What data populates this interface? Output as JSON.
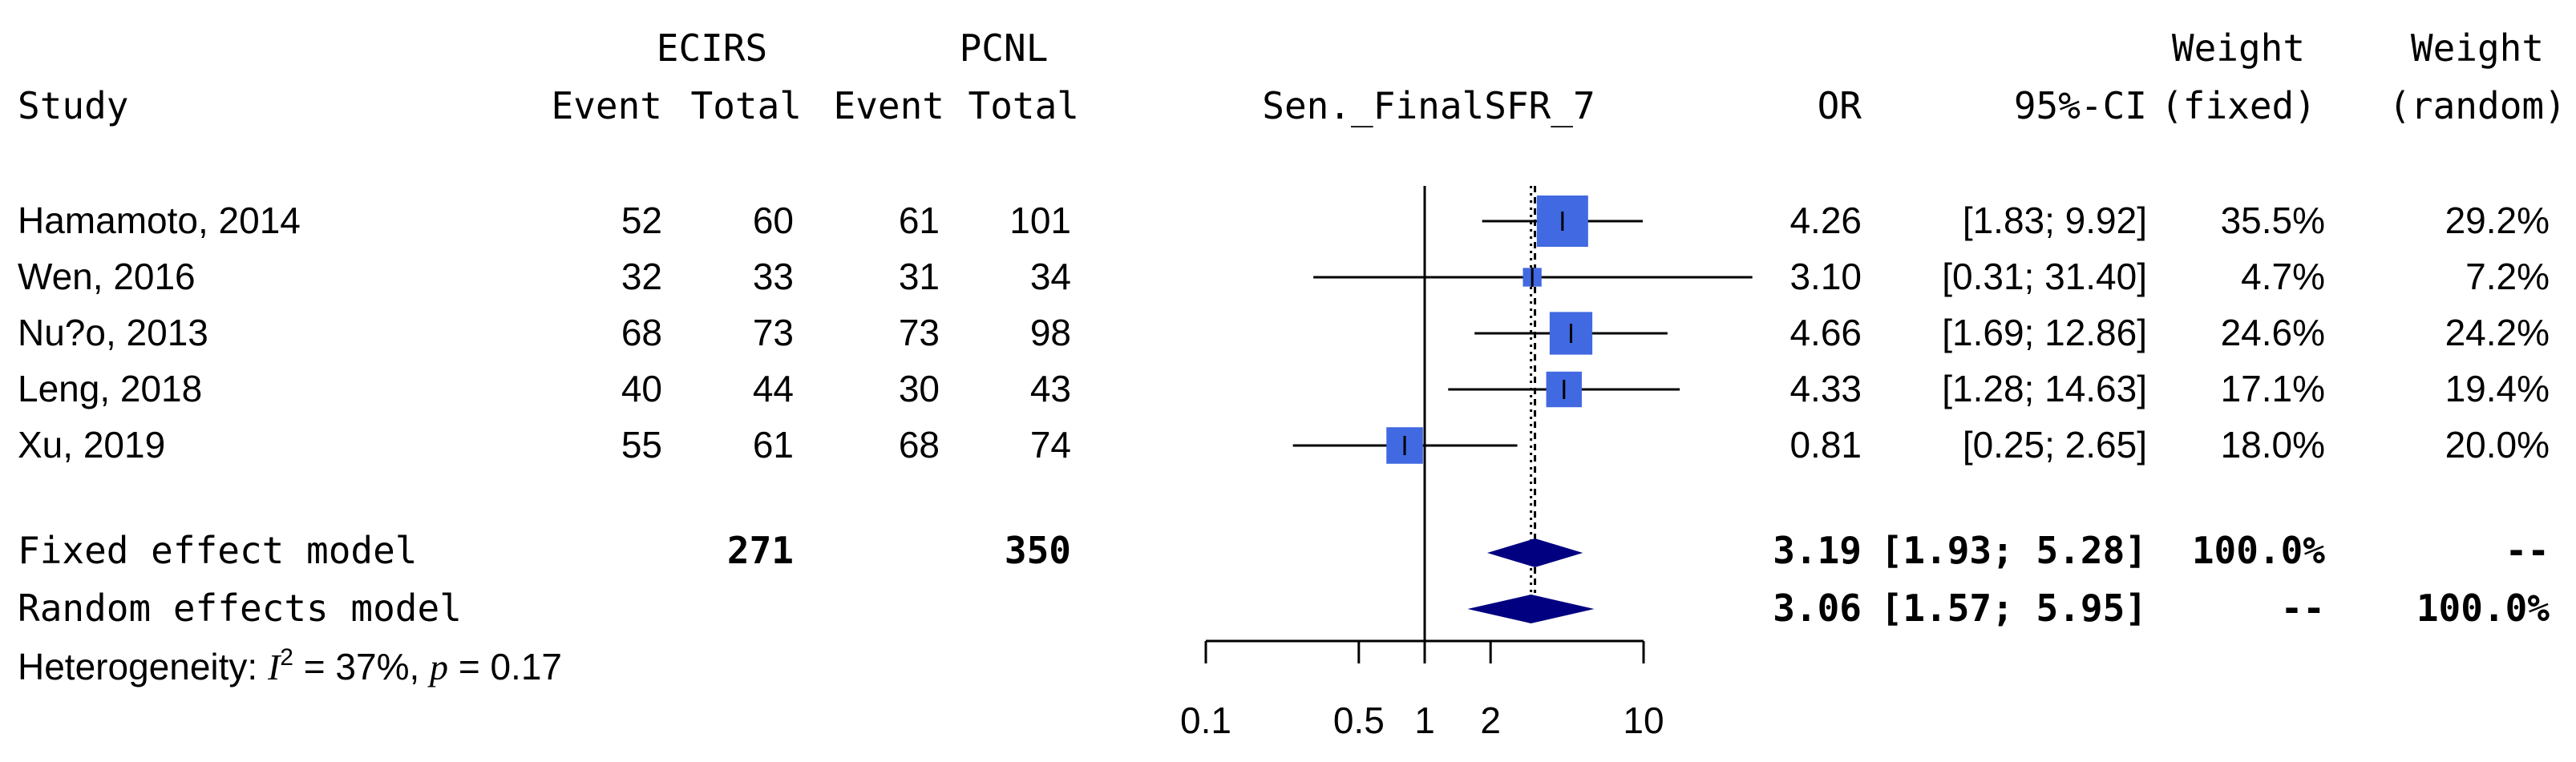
{
  "headers": {
    "group1": "ECIRS",
    "group2": "PCNL",
    "study": "Study",
    "event1": "Event",
    "total1": "Total",
    "event2": "Event",
    "total2": "Total",
    "outcome": "Sen._FinalSFR_7",
    "or": "OR",
    "ci": "95%-CI",
    "weight_fixed_1": "Weight",
    "weight_fixed_2": "(fixed)",
    "weight_random_1": "Weight",
    "weight_random_2": "(random)"
  },
  "studies": [
    {
      "name": "Hamamoto, 2014",
      "event1": "52",
      "total1": "60",
      "event2": "61",
      "total2": "101",
      "or_text": "4.26",
      "ci_text": "[1.83; 9.92]",
      "w_fixed": "35.5%",
      "w_random": "29.2%"
    },
    {
      "name": "Wen, 2016",
      "event1": "32",
      "total1": "33",
      "event2": "31",
      "total2": "34",
      "or_text": "3.10",
      "ci_text": "[0.31; 31.40]",
      "w_fixed": "4.7%",
      "w_random": "7.2%"
    },
    {
      "name": "Nu?o, 2013",
      "event1": "68",
      "total1": "73",
      "event2": "73",
      "total2": "98",
      "or_text": "4.66",
      "ci_text": "[1.69; 12.86]",
      "w_fixed": "24.6%",
      "w_random": "24.2%"
    },
    {
      "name": "Leng, 2018",
      "event1": "40",
      "total1": "44",
      "event2": "30",
      "total2": "43",
      "or_text": "4.33",
      "ci_text": "[1.28; 14.63]",
      "w_fixed": "17.1%",
      "w_random": "19.4%"
    },
    {
      "name": "Xu, 2019",
      "event1": "55",
      "total1": "61",
      "event2": "68",
      "total2": "74",
      "or_text": "0.81",
      "ci_text": "[0.25; 2.65]",
      "w_fixed": "18.0%",
      "w_random": "20.0%"
    }
  ],
  "summaries": [
    {
      "label": "Fixed effect model",
      "total1": "271",
      "total2": "350",
      "or_text": "3.19",
      "ci_text": "[1.93; 5.28]",
      "w_fixed": "100.0%",
      "w_random": "--"
    },
    {
      "label": "Random effects model",
      "total1": "",
      "total2": "",
      "or_text": "3.06",
      "ci_text": "[1.57; 5.95]",
      "w_fixed": "--",
      "w_random": "100.0%"
    }
  ],
  "heterogeneity": {
    "prefix": "Heterogeneity: ",
    "i_label": "I",
    "sup": "2",
    "middle": " = 37%, ",
    "p_label": "p",
    "suffix": " = 0.17"
  },
  "chart_data": {
    "type": "forest",
    "scale": "log",
    "xlim": [
      0.1,
      10
    ],
    "ticks": [
      0.1,
      0.5,
      1,
      2,
      10
    ],
    "tick_labels": [
      "0.1",
      "0.5",
      "1",
      "2",
      "10"
    ],
    "null_value": 1,
    "studies": [
      {
        "or": 4.26,
        "lo": 1.83,
        "hi": 9.92,
        "weight_fixed": 35.5
      },
      {
        "or": 3.1,
        "lo": 0.31,
        "hi": 31.4,
        "weight_fixed": 4.7
      },
      {
        "or": 4.66,
        "lo": 1.69,
        "hi": 12.86,
        "weight_fixed": 24.6
      },
      {
        "or": 4.33,
        "lo": 1.28,
        "hi": 14.63,
        "weight_fixed": 17.1
      },
      {
        "or": 0.81,
        "lo": 0.25,
        "hi": 2.65,
        "weight_fixed": 18.0
      }
    ],
    "fixed": {
      "or": 3.19,
      "lo": 1.93,
      "hi": 5.28
    },
    "random": {
      "or": 3.06,
      "lo": 1.57,
      "hi": 5.95
    },
    "colors": {
      "box": "#4169E1",
      "diamond": "#000080",
      "line": "#000000"
    }
  }
}
